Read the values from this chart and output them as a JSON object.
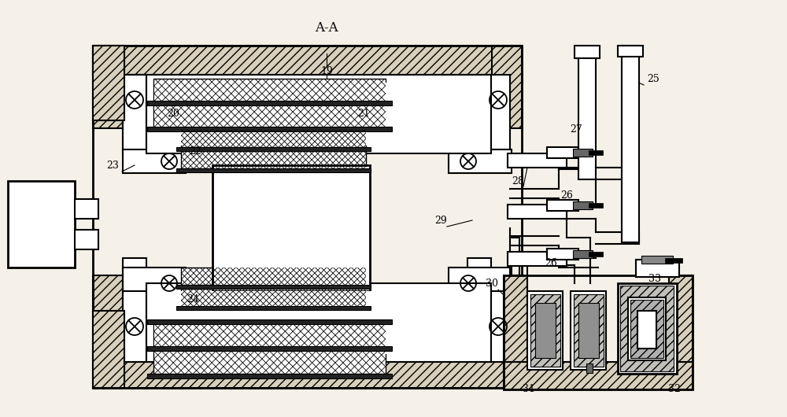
{
  "bg_color": "#f5f0e8",
  "hatch_fc": "#d8d0bc",
  "title": "A-A",
  "lw_main": 1.5,
  "lw_thin": 1.0,
  "lw_thick": 2.0
}
